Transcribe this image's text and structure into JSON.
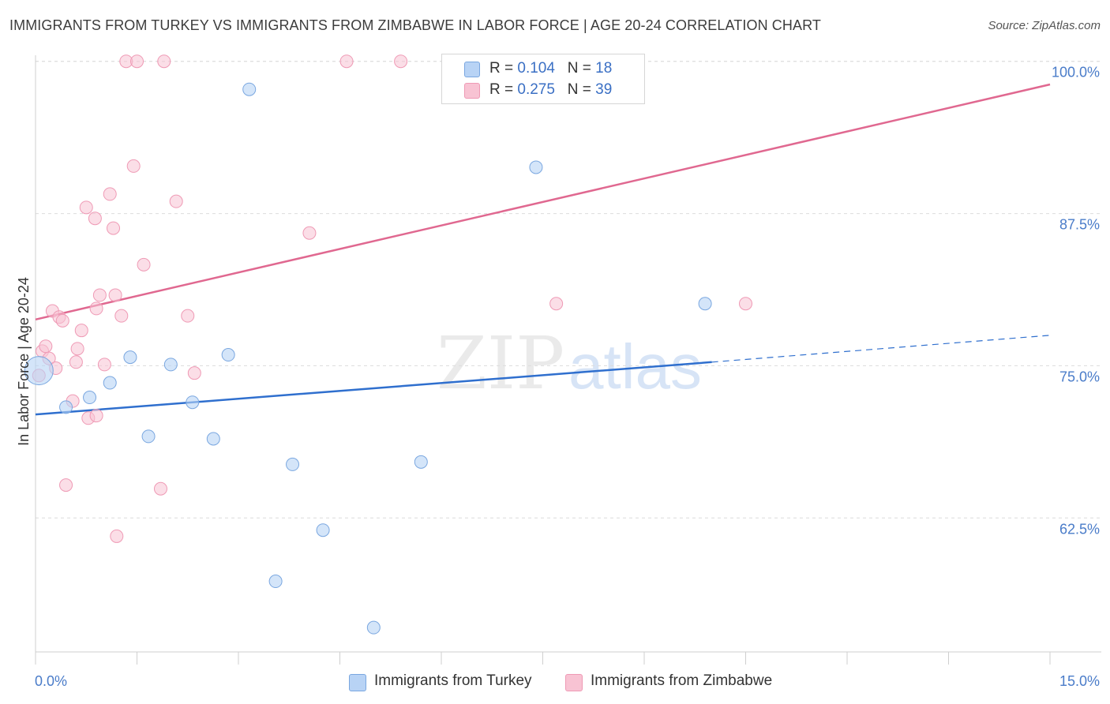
{
  "title": "IMMIGRANTS FROM TURKEY VS IMMIGRANTS FROM ZIMBABWE IN LABOR FORCE | AGE 20-24 CORRELATION CHART",
  "source": "Source: ZipAtlas.com",
  "watermark": {
    "zip": "ZIP",
    "atlas": "atlas"
  },
  "legend": {
    "rows": [
      {
        "r_label": "R = ",
        "r_value": "0.104",
        "n_label": "N = ",
        "n_value": "18"
      },
      {
        "r_label": "R = ",
        "r_value": "0.275",
        "n_label": "N = ",
        "n_value": "39"
      }
    ]
  },
  "colors": {
    "turkey_fill": "#b8d3f5",
    "turkey_stroke": "#7aa7e0",
    "turkey_line": "#2f6fce",
    "zimbabwe_fill": "#f8c3d3",
    "zimbabwe_stroke": "#ef9ab5",
    "zimbabwe_line": "#e06890",
    "tick_text": "#4a7cc9",
    "grid": "#dcdcdc"
  },
  "chart_data": {
    "type": "scatter",
    "title": "IMMIGRANTS FROM TURKEY VS IMMIGRANTS FROM ZIMBABWE IN LABOR FORCE | AGE 20-24 CORRELATION CHART",
    "xlabel": "",
    "ylabel": "In Labor Force | Age 20-24",
    "xlim": [
      0,
      15
    ],
    "ylim": [
      51.5,
      100.5
    ],
    "x_tick_labels": [
      "0.0%",
      "15.0%"
    ],
    "y_ticks": [
      62.5,
      75.0,
      87.5,
      100.0
    ],
    "y_tick_labels": [
      "62.5%",
      "75.0%",
      "87.5%",
      "100.0%"
    ],
    "grid": true,
    "legend_position": "top-center",
    "series": [
      {
        "name": "Immigrants from Turkey",
        "r": 0.104,
        "n": 18,
        "points": [
          [
            0.05,
            74.6
          ],
          [
            0.45,
            71.6
          ],
          [
            0.8,
            72.4
          ],
          [
            1.1,
            73.6
          ],
          [
            1.4,
            75.7
          ],
          [
            1.67,
            69.2
          ],
          [
            2.0,
            75.1
          ],
          [
            2.32,
            72.0
          ],
          [
            2.63,
            69.0
          ],
          [
            2.85,
            75.9
          ],
          [
            3.16,
            97.7
          ],
          [
            3.55,
            57.3
          ],
          [
            3.8,
            66.9
          ],
          [
            4.25,
            61.5
          ],
          [
            5.0,
            53.5
          ],
          [
            5.7,
            67.1
          ],
          [
            7.4,
            91.3
          ],
          [
            9.9,
            80.1
          ]
        ],
        "trend": {
          "x": [
            0,
            10.0
          ],
          "y": [
            71.0,
            75.3
          ]
        },
        "trend_dashed": {
          "x": [
            10.0,
            15
          ],
          "y": [
            75.3,
            77.5
          ]
        }
      },
      {
        "name": "Immigrants from Zimbabwe",
        "r": 0.275,
        "n": 39,
        "points": [
          [
            0.05,
            74.2
          ],
          [
            0.1,
            76.2
          ],
          [
            0.15,
            76.6
          ],
          [
            0.2,
            75.6
          ],
          [
            0.25,
            79.5
          ],
          [
            0.3,
            74.8
          ],
          [
            0.35,
            79.0
          ],
          [
            0.4,
            78.7
          ],
          [
            0.45,
            65.2
          ],
          [
            0.55,
            72.1
          ],
          [
            0.6,
            75.3
          ],
          [
            0.62,
            76.4
          ],
          [
            0.68,
            77.9
          ],
          [
            0.75,
            88.0
          ],
          [
            0.78,
            70.7
          ],
          [
            0.88,
            87.1
          ],
          [
            0.9,
            70.9
          ],
          [
            0.95,
            80.8
          ],
          [
            1.02,
            75.1
          ],
          [
            1.1,
            89.1
          ],
          [
            1.15,
            86.3
          ],
          [
            1.2,
            61.0
          ],
          [
            1.27,
            79.1
          ],
          [
            1.34,
            100.0
          ],
          [
            1.5,
            100.0
          ],
          [
            1.45,
            91.4
          ],
          [
            1.6,
            83.3
          ],
          [
            1.85,
            64.9
          ],
          [
            1.9,
            100.0
          ],
          [
            2.08,
            88.5
          ],
          [
            2.25,
            79.1
          ],
          [
            2.35,
            74.4
          ],
          [
            4.05,
            85.9
          ],
          [
            4.6,
            100.0
          ],
          [
            5.4,
            100.0
          ],
          [
            7.7,
            80.1
          ],
          [
            10.5,
            80.1
          ],
          [
            0.9,
            79.7
          ],
          [
            1.18,
            80.8
          ]
        ],
        "trend": {
          "x": [
            0,
            15
          ],
          "y": [
            78.8,
            98.1
          ]
        }
      }
    ]
  },
  "bottom_legend": {
    "turkey_label": "Immigrants from Turkey",
    "zimbabwe_label": "Immigrants from Zimbabwe"
  }
}
